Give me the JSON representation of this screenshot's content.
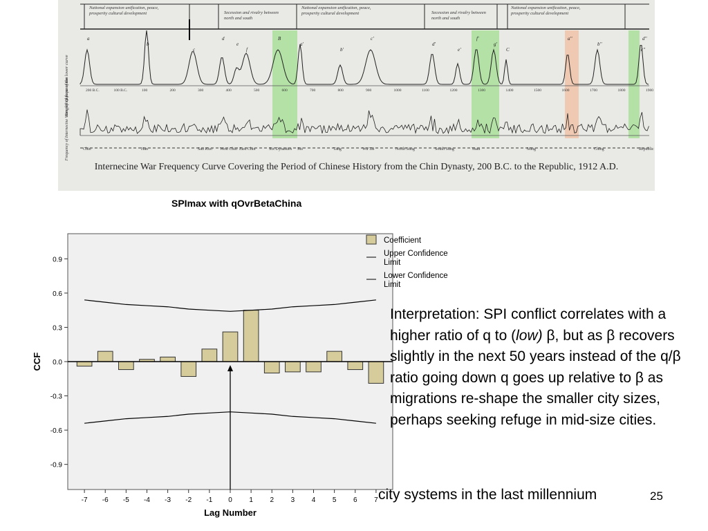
{
  "scan": {
    "caption": "Internecine War Frequency Curve Covering the Period of Chinese History from the Chin Dynasty, 200 B.C. to the Republic, 1912 A.D.",
    "top_curve_label": "Simplified form of the lower curve",
    "bottom_curve_label": "Frequency of Internecine Wars per Quinquennium",
    "phase_texts": [
      "National expansion unification, peace, prosperity cultural development",
      "Secession and rivalry between north and south",
      "National expansion unification, peace, prosperity cultural development",
      "Secession and rivalry between north and south",
      "National expansion unification, peace, prosperity cultural development"
    ],
    "dynasties": [
      "Chin",
      "Han",
      "San Kuo",
      "West Chin",
      "East Chin",
      "Six Dynasties",
      "Sui",
      "Tang",
      "Wu Tai",
      "North Sung",
      "South Sung",
      "Yuan",
      "Ming",
      "Ching",
      "Republic"
    ],
    "peak_letters": [
      "a",
      "b",
      "c",
      "d",
      "e",
      "f",
      "B",
      "a'",
      "b'",
      "c'",
      "d'",
      "e'",
      "f'",
      "g'",
      "C",
      "a''",
      "b''",
      "c''",
      "d''"
    ],
    "year_ticks": [
      "200 B.C.",
      "100 B.C.",
      "100",
      "200",
      "300",
      "400",
      "500",
      "600",
      "700",
      "800",
      "900",
      "1000",
      "1100",
      "1200",
      "1300",
      "1400",
      "1500",
      "1600",
      "1700",
      "1800",
      "1900"
    ],
    "highlight_colors": {
      "green": "#a9df9a",
      "orange": "#f0c3a8"
    }
  },
  "ccf_title": "SPImax with qOvrBetaChina",
  "chart_data": {
    "type": "bar",
    "x": [
      -7,
      -6,
      -5,
      -4,
      -3,
      -2,
      -1,
      0,
      1,
      2,
      3,
      4,
      5,
      6,
      7
    ],
    "x_tick_labels": [
      "-7",
      "-6",
      "-5",
      "-4",
      "-3",
      "-2",
      "-1",
      "0",
      "1",
      "2",
      "3",
      "4",
      "5",
      "6",
      "7"
    ],
    "series": [
      {
        "name": "Coefficient",
        "values": [
          -0.04,
          0.09,
          -0.07,
          0.02,
          0.04,
          -0.13,
          0.11,
          0.26,
          0.45,
          -0.1,
          -0.09,
          -0.09,
          0.09,
          -0.07,
          -0.19
        ]
      },
      {
        "name": "Upper Confidence Limit",
        "values": [
          0.54,
          0.52,
          0.5,
          0.49,
          0.48,
          0.46,
          0.45,
          0.44,
          0.45,
          0.46,
          0.48,
          0.49,
          0.5,
          0.52,
          0.54
        ]
      },
      {
        "name": "Lower Confidence Limit",
        "values": [
          -0.54,
          -0.52,
          -0.5,
          -0.49,
          -0.48,
          -0.46,
          -0.45,
          -0.44,
          -0.45,
          -0.46,
          -0.48,
          -0.49,
          -0.5,
          -0.52,
          -0.54
        ]
      }
    ],
    "xlabel": "Lag Number",
    "ylabel": "CCF",
    "y_tick_labels": [
      "0.9",
      "0.6",
      "0.3",
      "0.0",
      "-0.3",
      "-0.6",
      "-0.9"
    ],
    "ylim": [
      -1.12,
      1.12
    ],
    "legend_position": "right",
    "colors": {
      "bar_fill": "#d6cc9b",
      "bar_stroke": "#333333",
      "plot_bg": "#f0f0f0"
    },
    "annotation": "arrow pointing to lag 0"
  },
  "interpretation": {
    "part1": "Interpretation: SPI conflict correlates with a higher ratio of q to (",
    "emphasis": "low)",
    "part2": " β, but as β recovers slightly in the next 50 years instead of the q/β ratio going down q goes up relative to β as migrations re-shape the smaller city sizes, perhaps seeking refuge in mid-size cities."
  },
  "footer_text": "city systems in the last millennium",
  "page_number": "25"
}
